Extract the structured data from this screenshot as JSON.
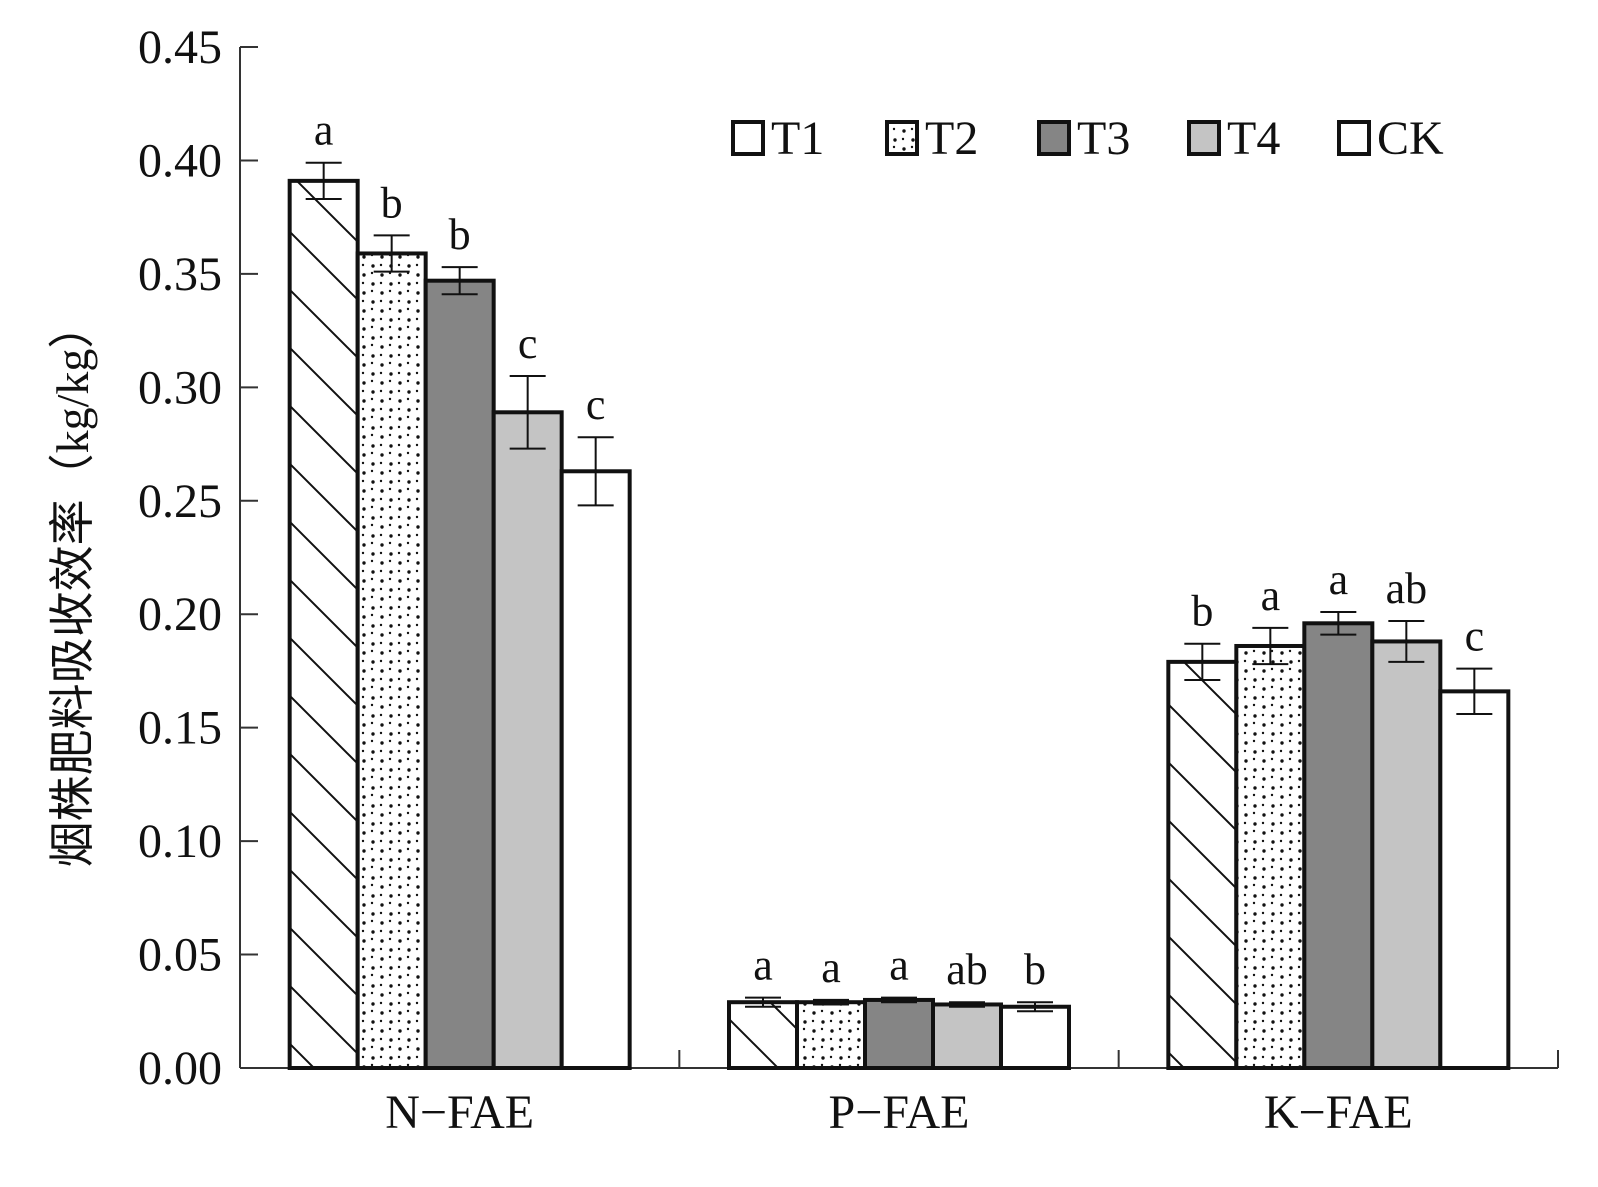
{
  "chart_data": {
    "type": "bar",
    "title": "",
    "xlabel": "",
    "ylabel": "烟株肥料吸收效率（kg/kg）",
    "ylim": [
      0,
      0.45
    ],
    "yticks": [
      "0.00",
      "0.05",
      "0.10",
      "0.15",
      "0.20",
      "0.25",
      "0.30",
      "0.35",
      "0.40",
      "0.45"
    ],
    "categories": [
      "N−FAE",
      "P−FAE",
      "K−FAE"
    ],
    "legend_position": "top-right",
    "grid": false,
    "series": [
      {
        "name": "T1",
        "pattern": "hatch",
        "color": "#ffffff",
        "values": [
          0.391,
          0.029,
          0.179
        ],
        "errors": [
          0.008,
          0.002,
          0.008
        ],
        "sig": [
          "a",
          "a",
          "b"
        ]
      },
      {
        "name": "T2",
        "pattern": "dots",
        "color": "#ffffff",
        "values": [
          0.359,
          0.029,
          0.186
        ],
        "errors": [
          0.008,
          0.001,
          0.008
        ],
        "sig": [
          "b",
          "a",
          "a"
        ]
      },
      {
        "name": "T3",
        "pattern": "solid",
        "color": "#858585",
        "values": [
          0.347,
          0.03,
          0.196
        ],
        "errors": [
          0.006,
          0.001,
          0.005
        ],
        "sig": [
          "b",
          "a",
          "a"
        ]
      },
      {
        "name": "T4",
        "pattern": "solid",
        "color": "#c4c4c4",
        "values": [
          0.289,
          0.028,
          0.188
        ],
        "errors": [
          0.016,
          0.001,
          0.009
        ],
        "sig": [
          "c",
          "ab",
          "ab"
        ]
      },
      {
        "name": "CK",
        "pattern": "solid",
        "color": "#ffffff",
        "values": [
          0.263,
          0.027,
          0.166
        ],
        "errors": [
          0.015,
          0.002,
          0.01
        ],
        "sig": [
          "c",
          "b",
          "c"
        ]
      }
    ]
  }
}
